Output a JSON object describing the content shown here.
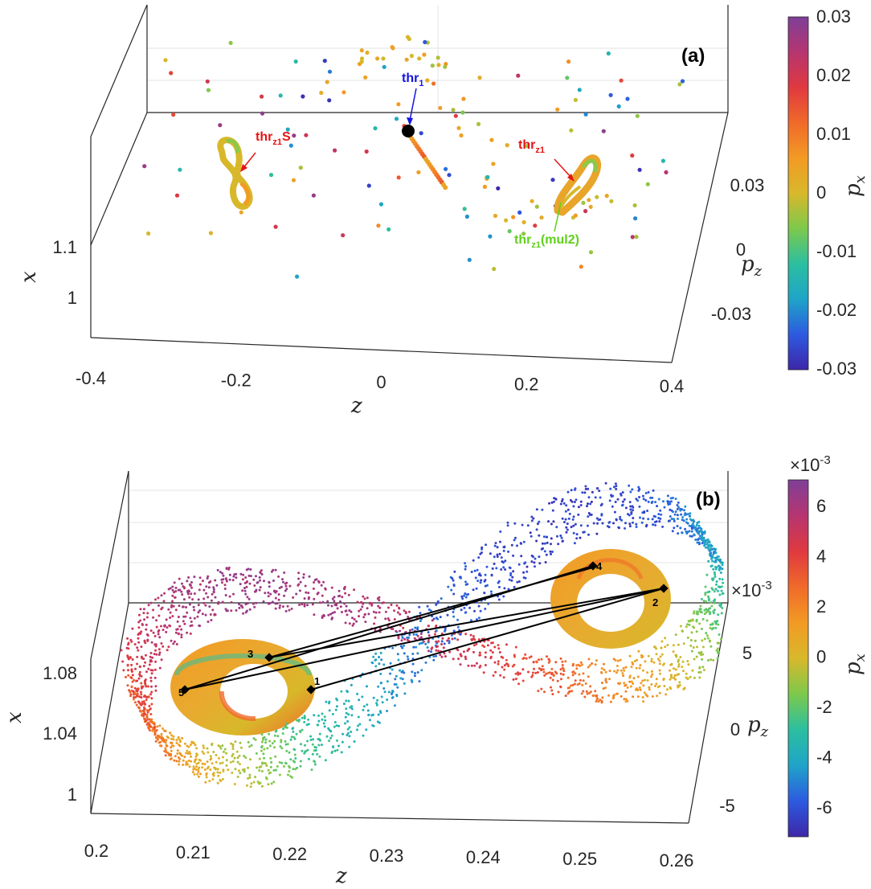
{
  "colormap": [
    "#3e26a8",
    "#2d5ae0",
    "#1fa4c8",
    "#2bbfa0",
    "#7dc94c",
    "#d8b82a",
    "#f39a24",
    "#f06a2a",
    "#e0393f",
    "#b63570",
    "#7f3f98"
  ],
  "chart_data": [
    {
      "panel": "(a)",
      "type": "scatter3d",
      "xlabel": "z",
      "ylabel": "p",
      "ylabel_sub": "z",
      "zlabel": "x",
      "colorbar_label": "p",
      "colorbar_label_sub": "x",
      "xlim": [
        -0.4,
        0.4
      ],
      "ylim": [
        -0.045,
        0.045
      ],
      "zlim": [
        0.95,
        1.15
      ],
      "x_ticks": [
        "-0.4",
        "-0.2",
        "0",
        "0.2",
        "0.4"
      ],
      "y_ticks": [
        "-0.03",
        "0",
        "0.03"
      ],
      "z_ticks": [
        "1",
        "1.1"
      ],
      "colorbar_range": [
        -0.03,
        0.03
      ],
      "colorbar_ticks": [
        "0.03",
        "0.02",
        "0.01",
        "0",
        "-0.01",
        "-0.02",
        "-0.03"
      ],
      "annotations": [
        {
          "text": "thr",
          "sub": "1",
          "color": "#1414e6"
        },
        {
          "text": "thr",
          "sub": "z1",
          "suffix": "S",
          "color": "#e61414"
        },
        {
          "text": "thr",
          "sub": "z1",
          "suffix": "",
          "color": "#e61414"
        },
        {
          "text": "thr",
          "sub": "z1",
          "suffix": "(mul2)",
          "color": "#5fd01c"
        }
      ],
      "thr1_point": {
        "z": 0.03,
        "pz": 0.02,
        "x": 1.13
      },
      "loops": [
        {
          "name": "thr_z1 S",
          "center_z": -0.19,
          "center_pz": 0.02,
          "center_x": 1.12
        },
        {
          "name": "thr_z1",
          "center_z": 0.24,
          "center_pz": 0.0,
          "center_x": 1.11
        }
      ]
    },
    {
      "panel": "(b)",
      "type": "scatter3d",
      "xlabel": "z",
      "ylabel": "p",
      "ylabel_sub": "z",
      "zlabel": "x",
      "colorbar_label": "p",
      "colorbar_label_sub": "x",
      "colorbar_exponent": "×10",
      "colorbar_exponent_power": "-3",
      "y_exponent": "×10",
      "y_exponent_power": "-3",
      "xlim": [
        0.198,
        0.262
      ],
      "ylim": [
        -0.0065,
        0.0065
      ],
      "zlim": [
        0.99,
        1.13
      ],
      "x_ticks": [
        "0.2",
        "0.21",
        "0.22",
        "0.23",
        "0.24",
        "0.25",
        "0.26"
      ],
      "y_ticks": [
        "-5",
        "0",
        "5"
      ],
      "z_ticks": [
        "1",
        "1.04",
        "1.08"
      ],
      "colorbar_range": [
        -6.6,
        6.6
      ],
      "colorbar_ticks": [
        "6",
        "4",
        "2",
        "0",
        "-2",
        "-4",
        "-6"
      ],
      "numbered_points": [
        "1",
        "2",
        "3",
        "4",
        "5"
      ]
    }
  ]
}
